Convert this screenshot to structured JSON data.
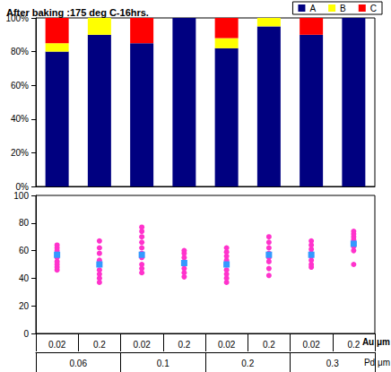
{
  "chart_data": [
    {
      "type": "bar",
      "title": "After baking :175 deg C-16hrs.",
      "stacked": true,
      "grid": false,
      "legend": "upper right",
      "tick_labels": "y",
      "categories": [
        "0.02",
        "0.2",
        "0.02",
        "0.2",
        "0.02",
        "0.2",
        "0.02",
        "0.2"
      ],
      "series": [
        {
          "name": "A",
          "color": "#000080",
          "values": [
            80,
            90,
            85,
            100,
            82,
            95,
            90,
            100
          ]
        },
        {
          "name": "B",
          "color": "#ffff00",
          "values": [
            5,
            10,
            0,
            0,
            6,
            5,
            0,
            0
          ]
        },
        {
          "name": "C",
          "color": "#ff0000",
          "values": [
            15,
            0,
            15,
            0,
            12,
            0,
            10,
            0
          ]
        }
      ],
      "ylim": [
        0,
        100
      ],
      "yticks": [
        {
          "value": 0,
          "label": "0%"
        },
        {
          "value": 20,
          "label": "20%"
        },
        {
          "value": 40,
          "label": "40%"
        },
        {
          "value": 60,
          "label": "60%"
        },
        {
          "value": 80,
          "label": "80%"
        },
        {
          "value": 100,
          "label": "100%"
        }
      ]
    },
    {
      "type": "scatter",
      "grid": false,
      "xlabel": "Au μm",
      "x_group_label": "Pd μm",
      "categories": [
        "0.02",
        "0.2",
        "0.02",
        "0.2",
        "0.02",
        "0.2",
        "0.02",
        "0.2"
      ],
      "x_groups": [
        "0.06",
        "0.06",
        "0.1",
        "0.1",
        "0.2",
        "0.2",
        "0.3",
        "0.3"
      ],
      "series": [
        {
          "color": "#ff33cc",
          "marker": "circle",
          "values": [
            [
              46,
              48,
              50,
              52,
              55,
              57,
              60,
              62,
              64
            ],
            [
              37,
              40,
              43,
              46,
              50,
              53,
              58,
              62,
              67
            ],
            [
              44,
              47,
              50,
              55,
              58,
              62,
              66,
              70,
              74,
              77
            ],
            [
              41,
              44,
              47,
              50,
              52,
              55,
              58,
              60
            ],
            [
              37,
              40,
              43,
              46,
              50,
              53,
              56,
              59,
              62
            ],
            [
              42,
              47,
              52,
              55,
              58,
              62,
              66,
              70
            ],
            [
              48,
              50,
              53,
              56,
              58,
              61,
              64,
              67
            ],
            [
              50,
              60,
              63,
              66,
              68,
              70,
              72,
              74
            ]
          ]
        },
        {
          "color": "#3399ff",
          "marker": "square",
          "values": [
            57,
            50,
            57,
            51,
            50,
            57,
            57,
            65
          ]
        }
      ],
      "ylim": [
        0,
        100
      ],
      "yticks": [
        0,
        20,
        40,
        60,
        80,
        100
      ]
    }
  ]
}
